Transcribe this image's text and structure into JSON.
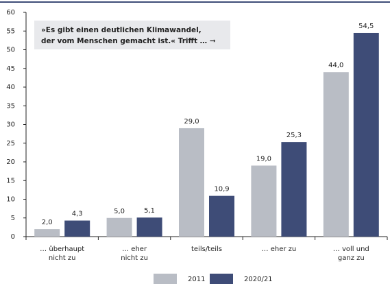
{
  "chart_data": {
    "type": "bar",
    "annotation": [
      "»Es gibt einen deutlichen Klimawandel,",
      "der vom Menschen gemacht ist.« Trifft … ➞"
    ],
    "categories": [
      [
        "… überhaupt",
        "nicht zu"
      ],
      [
        "… eher",
        "nicht zu"
      ],
      [
        "teils/teils"
      ],
      [
        "… eher zu"
      ],
      [
        "… voll und",
        "ganz zu"
      ]
    ],
    "series": [
      {
        "name": "2011",
        "color": "#b9bdc5",
        "values": [
          2.0,
          5.0,
          29.0,
          19.0,
          44.0
        ],
        "value_labels": [
          "2,0",
          "5,0",
          "29,0",
          "19,0",
          "44,0"
        ]
      },
      {
        "name": "2020/21",
        "color": "#3e4c77",
        "values": [
          4.3,
          5.1,
          10.9,
          25.3,
          54.5
        ],
        "value_labels": [
          "4,3",
          "5,1",
          "10,9",
          "25,3",
          "54,5"
        ]
      }
    ],
    "ylim": [
      0,
      60
    ],
    "yticks": [
      0,
      5,
      10,
      15,
      20,
      25,
      30,
      35,
      40,
      45,
      50,
      55,
      60
    ],
    "legend": "bottom"
  }
}
